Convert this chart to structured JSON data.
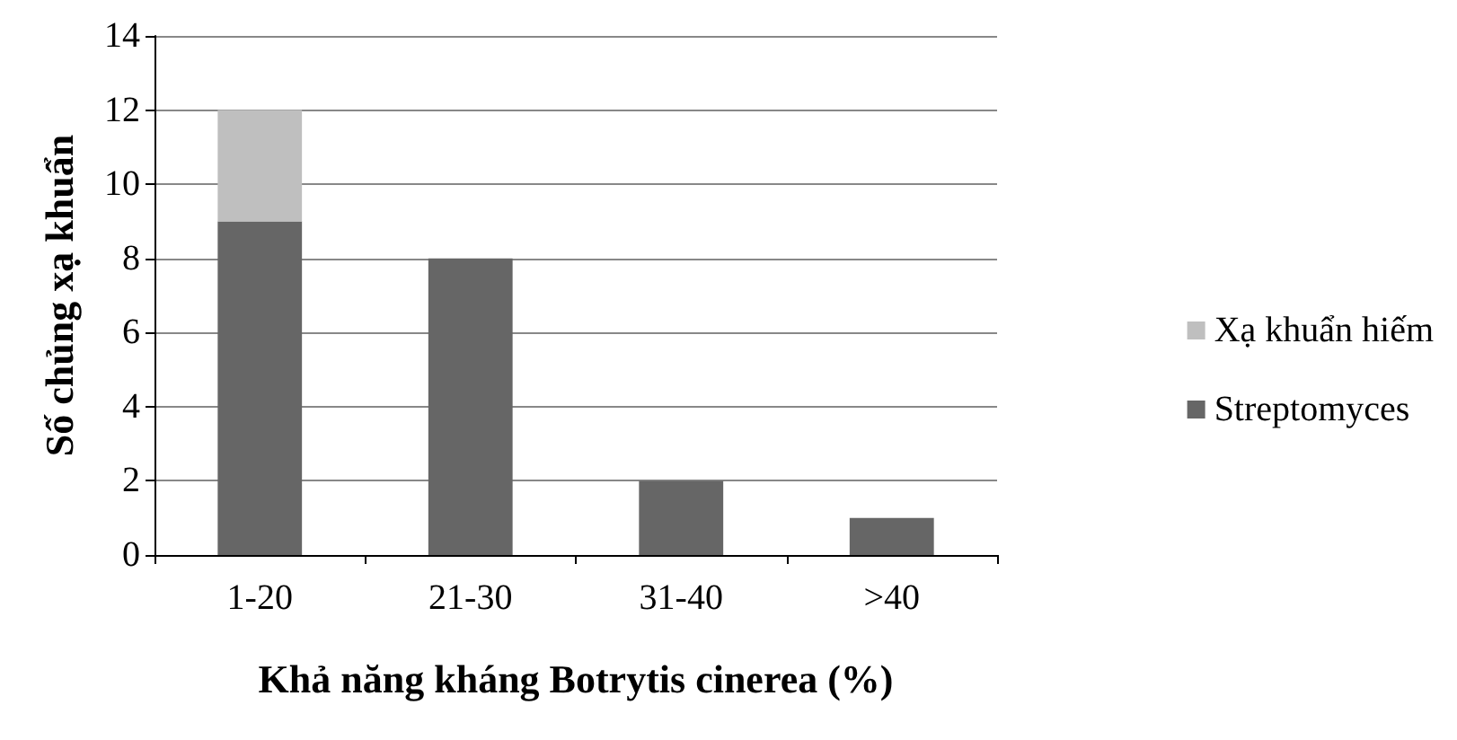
{
  "chart_data": {
    "type": "bar",
    "stacked": true,
    "xlabel": "Khả năng kháng Botrytis cinerea (%)",
    "ylabel": "Số chủng xạ khuẩn",
    "categories": [
      "1-20",
      "21-30",
      "31-40",
      ">40"
    ],
    "series": [
      {
        "name": "Streptomyces",
        "color": "#666666",
        "values": [
          9,
          8,
          2,
          1
        ]
      },
      {
        "name": "Xạ khuẩn hiếm",
        "color": "#bfbfbf",
        "values": [
          3,
          0,
          0,
          0
        ]
      }
    ],
    "ylim": [
      0,
      14
    ],
    "yticks": [
      0,
      2,
      4,
      6,
      8,
      10,
      12,
      14
    ],
    "grid": "y",
    "legend": "right"
  }
}
